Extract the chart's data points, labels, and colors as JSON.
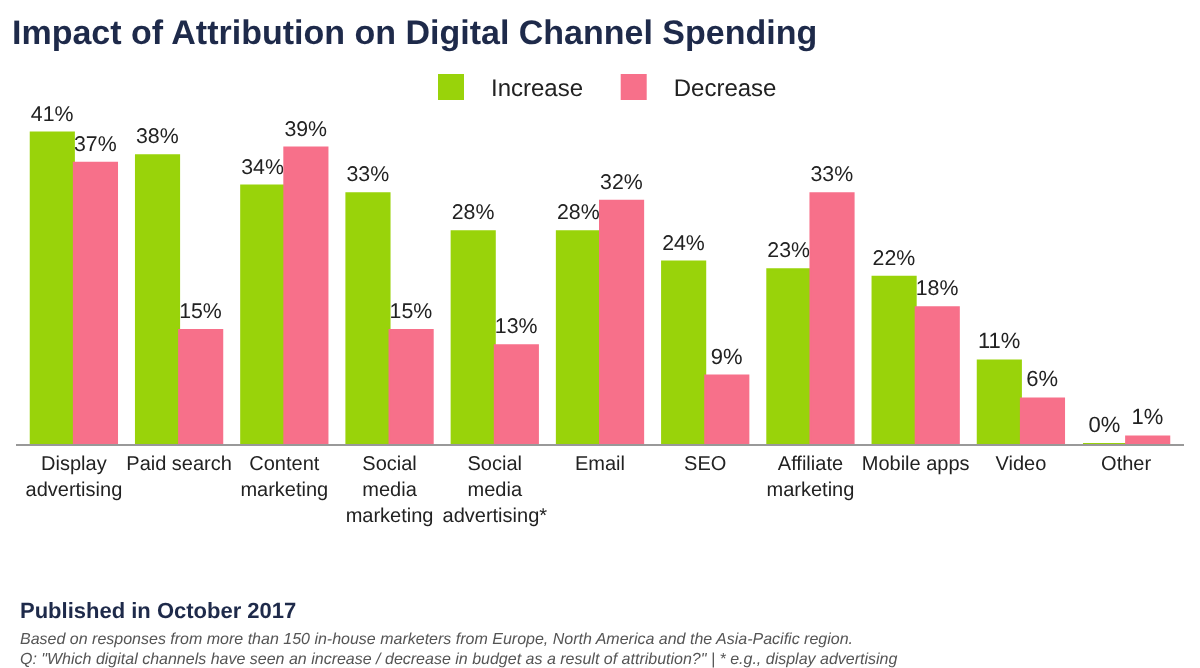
{
  "chart_data": {
    "type": "bar",
    "title": "Impact of Attribution on Digital Channel Spending",
    "categories": [
      "Display\nadvertising",
      "Paid search",
      "Content\nmarketing",
      "Social\nmedia\nmarketing",
      "Social\nmedia\nadvertising*",
      "Email",
      "SEO",
      "Affiliate\nmarketing",
      "Mobile apps",
      "Video",
      "Other"
    ],
    "series": [
      {
        "name": "Increase",
        "color": "#99d30a",
        "values": [
          41,
          38,
          34,
          33,
          28,
          28,
          24,
          23,
          22,
          11,
          0
        ],
        "value_labels": [
          "41%",
          "38%",
          "34%",
          "33%",
          "28%",
          "28%",
          "24%",
          "23%",
          "22%",
          "11%",
          "0%"
        ]
      },
      {
        "name": "Decrease",
        "color": "#f7708a",
        "values": [
          37,
          15,
          39,
          15,
          13,
          32,
          9,
          33,
          18,
          6,
          1
        ],
        "value_labels": [
          "37%",
          "15%",
          "39%",
          "15%",
          "13%",
          "32%",
          "9%",
          "33%",
          "18%",
          "6%",
          "1%"
        ]
      }
    ],
    "tick_labels": "x",
    "legend": "top",
    "annotations": [
      "Published in October 2017",
      "Based on responses from more than 150 in-house marketers from Europe, North America and the Asia-Pacific region.",
      "Q: \"Which digital channels have seen an increase / decrease in budget as a result of attribution?\" | * e.g., display advertising"
    ]
  }
}
